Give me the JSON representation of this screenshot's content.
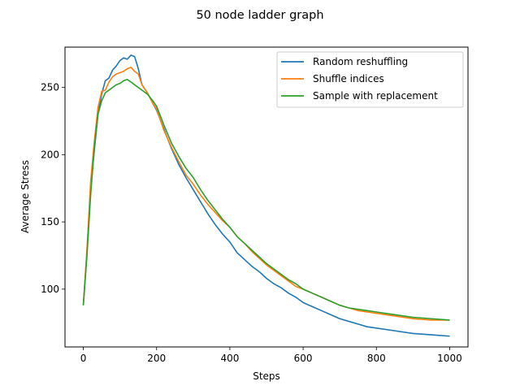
{
  "chart_data": {
    "type": "line",
    "title": "50 node ladder graph",
    "xlabel": "Steps",
    "ylabel": "Average Stress",
    "xlim": [
      -50,
      1050
    ],
    "ylim": [
      57,
      280
    ],
    "xticks": [
      0,
      200,
      400,
      600,
      800,
      1000
    ],
    "yticks": [
      100,
      150,
      200,
      250
    ],
    "legend_position": "top-right",
    "grid": false,
    "series": [
      {
        "name": "Random reshuffling",
        "color": "#1f77b4",
        "x": [
          0,
          10,
          20,
          30,
          40,
          50,
          60,
          70,
          80,
          90,
          100,
          110,
          120,
          130,
          140,
          150,
          160,
          175,
          190,
          200,
          220,
          240,
          260,
          280,
          300,
          320,
          340,
          360,
          380,
          400,
          420,
          440,
          460,
          480,
          500,
          520,
          540,
          560,
          580,
          600,
          625,
          650,
          675,
          700,
          725,
          750,
          775,
          800,
          850,
          900,
          950,
          1000
        ],
        "y": [
          88,
          128,
          175,
          203,
          230,
          245,
          255,
          257,
          263,
          266,
          270,
          272,
          271,
          274,
          273,
          264,
          252,
          246,
          238,
          233,
          219,
          205,
          193,
          183,
          174,
          165,
          156,
          148,
          141,
          135,
          127,
          122,
          117,
          113,
          108,
          104,
          101,
          97,
          94,
          90,
          87,
          84,
          81,
          78,
          76,
          74,
          72,
          71,
          69,
          67,
          66,
          65
        ]
      },
      {
        "name": "Shuffle indices",
        "color": "#ff7f0e",
        "x": [
          0,
          10,
          20,
          30,
          40,
          50,
          60,
          70,
          80,
          90,
          100,
          110,
          120,
          130,
          140,
          150,
          160,
          175,
          190,
          200,
          220,
          240,
          260,
          280,
          300,
          320,
          340,
          360,
          380,
          400,
          420,
          440,
          460,
          480,
          500,
          520,
          540,
          560,
          580,
          600,
          625,
          650,
          675,
          700,
          725,
          750,
          775,
          800,
          850,
          900,
          950,
          1000
        ],
        "y": [
          88,
          130,
          180,
          210,
          235,
          247,
          248,
          254,
          258,
          260,
          261,
          262,
          264,
          265,
          262,
          260,
          252,
          246,
          238,
          234,
          218,
          206,
          195,
          185,
          178,
          170,
          163,
          157,
          151,
          146,
          139,
          134,
          128,
          123,
          118,
          114,
          110,
          106,
          102,
          100,
          97,
          94,
          91,
          88,
          86,
          84,
          83,
          82,
          80,
          78,
          77,
          77
        ]
      },
      {
        "name": "Sample with replacement",
        "color": "#2ca02c",
        "x": [
          0,
          10,
          20,
          30,
          40,
          50,
          60,
          70,
          80,
          90,
          100,
          110,
          120,
          130,
          140,
          150,
          160,
          175,
          190,
          200,
          220,
          240,
          260,
          280,
          300,
          320,
          340,
          360,
          380,
          400,
          420,
          440,
          460,
          480,
          500,
          520,
          540,
          560,
          580,
          600,
          625,
          650,
          675,
          700,
          725,
          750,
          775,
          800,
          850,
          900,
          950,
          1000
        ],
        "y": [
          88,
          125,
          170,
          205,
          230,
          240,
          246,
          248,
          250,
          252,
          253,
          255,
          256,
          254,
          252,
          250,
          248,
          245,
          240,
          236,
          222,
          209,
          199,
          190,
          183,
          174,
          166,
          159,
          152,
          146,
          139,
          134,
          129,
          124,
          119,
          115,
          111,
          107,
          104,
          100,
          97,
          94,
          91,
          88,
          86,
          85,
          84,
          83,
          81,
          79,
          78,
          77
        ]
      }
    ]
  }
}
